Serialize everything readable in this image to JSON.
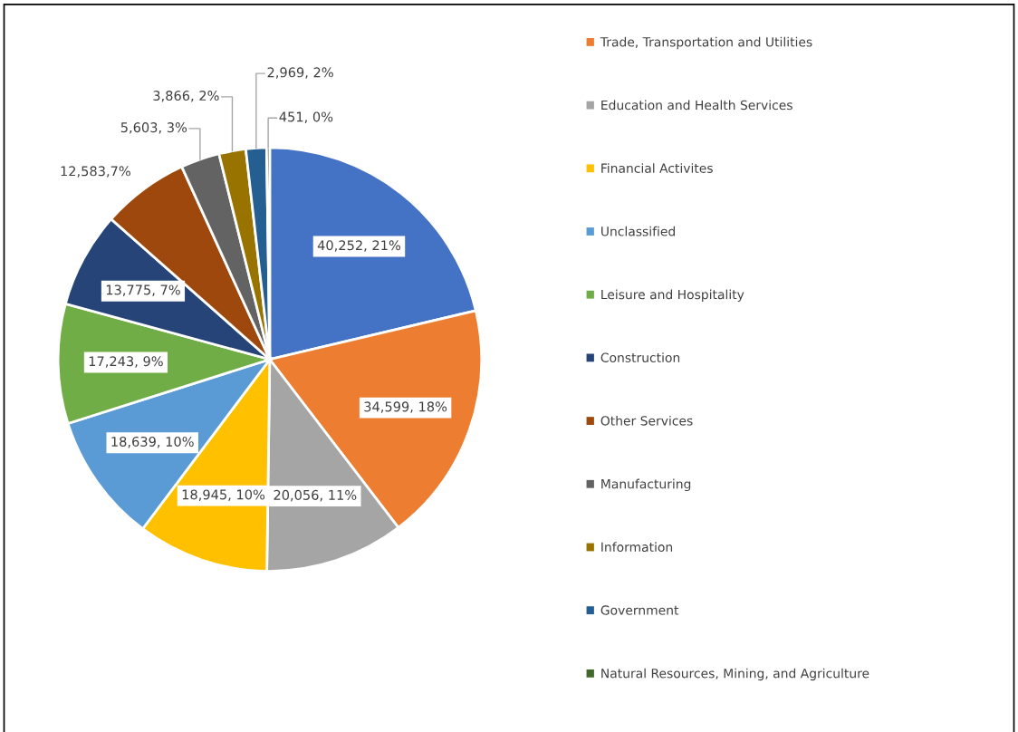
{
  "chart_data": {
    "type": "pie",
    "categories": [
      null,
      "Trade, Transportation and Utilities",
      "Education and Health Services",
      "Financial Activites",
      "Unclassified",
      "Leisure and Hospitality",
      "Construction",
      "Other Services",
      "Manufacturing",
      "Information",
      "Government",
      "Natural Resources, Mining, and Agriculture"
    ],
    "values": [
      40252,
      34599,
      20056,
      18945,
      18639,
      17243,
      13775,
      12583,
      5603,
      3866,
      2969,
      451
    ],
    "value_labels": [
      "40,252, 21%",
      "34,599, 18%",
      "20,056, 11%",
      "18,945, 10%",
      "18,639, 10%",
      "17,243, 9%",
      "13,775, 7%",
      "12,583,7%",
      "5,603, 3%",
      "3,866, 2%",
      "2,969, 2%",
      "451, 0%"
    ],
    "colors": [
      "#4472c4",
      "#ed7d31",
      "#a5a5a5",
      "#ffc000",
      "#5b9bd5",
      "#70ad47",
      "#264478",
      "#9e480e",
      "#636363",
      "#997300",
      "#255e91",
      "#43682b"
    ],
    "legend": "right"
  }
}
